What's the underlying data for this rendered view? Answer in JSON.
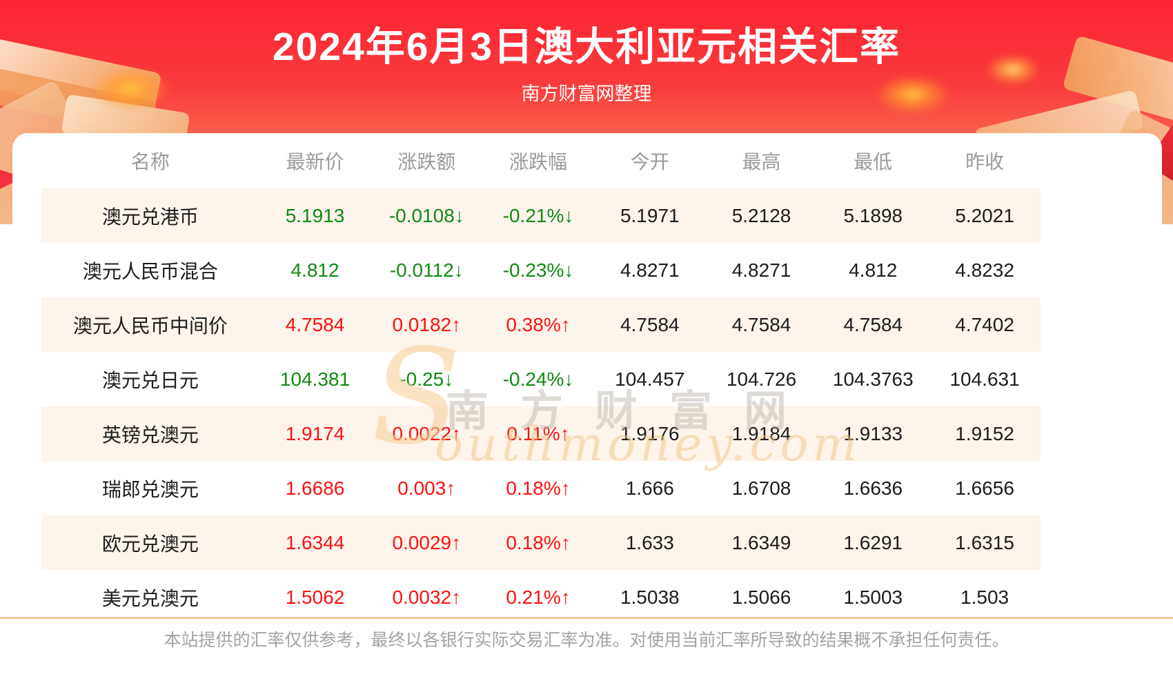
{
  "page": {
    "title": "2024年6月3日澳大利亚元相关汇率",
    "subtitle": "南方财富网整理",
    "watermark": {
      "cn": "南方财富网",
      "logo_s": "S",
      "en_rest": "outhmoney.com"
    },
    "footer_disclaimer": "本站提供的汇率仅供参考，最终以各银行实际交易汇率为准。对使用当前汇率所导致的结果概不承担任何责任。"
  },
  "colors": {
    "up": "#f81212",
    "down": "#118a11",
    "stripe": "#fdf4ec",
    "header_text": "#9b9b9b",
    "banner_red": "#fb2433",
    "divider": "#f7c89b"
  },
  "table": {
    "columns": [
      "名称",
      "最新价",
      "涨跌额",
      "涨跌幅",
      "今开",
      "最高",
      "最低",
      "昨收"
    ],
    "rows": [
      {
        "name": "澳元兑港币",
        "latest": "5.1913",
        "change": "-0.0108↓",
        "change_pct": "-0.21%↓",
        "open": "5.1971",
        "high": "5.2128",
        "low": "5.1898",
        "prev_close": "5.2021",
        "trend": "down"
      },
      {
        "name": "澳元人民币混合",
        "latest": "4.812",
        "change": "-0.0112↓",
        "change_pct": "-0.23%↓",
        "open": "4.8271",
        "high": "4.8271",
        "low": "4.812",
        "prev_close": "4.8232",
        "trend": "down"
      },
      {
        "name": "澳元人民币中间价",
        "latest": "4.7584",
        "change": "0.0182↑",
        "change_pct": "0.38%↑",
        "open": "4.7584",
        "high": "4.7584",
        "low": "4.7584",
        "prev_close": "4.7402",
        "trend": "up"
      },
      {
        "name": "澳元兑日元",
        "latest": "104.381",
        "change": "-0.25↓",
        "change_pct": "-0.24%↓",
        "open": "104.457",
        "high": "104.726",
        "low": "104.3763",
        "prev_close": "104.631",
        "trend": "down"
      },
      {
        "name": "英镑兑澳元",
        "latest": "1.9174",
        "change": "0.0022↑",
        "change_pct": "0.11%↑",
        "open": "1.9176",
        "high": "1.9184",
        "low": "1.9133",
        "prev_close": "1.9152",
        "trend": "up"
      },
      {
        "name": "瑞郎兑澳元",
        "latest": "1.6686",
        "change": "0.003↑",
        "change_pct": "0.18%↑",
        "open": "1.666",
        "high": "1.6708",
        "low": "1.6636",
        "prev_close": "1.6656",
        "trend": "up"
      },
      {
        "name": "欧元兑澳元",
        "latest": "1.6344",
        "change": "0.0029↑",
        "change_pct": "0.18%↑",
        "open": "1.633",
        "high": "1.6349",
        "low": "1.6291",
        "prev_close": "1.6315",
        "trend": "up"
      },
      {
        "name": "美元兑澳元",
        "latest": "1.5062",
        "change": "0.0032↑",
        "change_pct": "0.21%↑",
        "open": "1.5038",
        "high": "1.5066",
        "low": "1.5003",
        "prev_close": "1.503",
        "trend": "up"
      }
    ]
  }
}
